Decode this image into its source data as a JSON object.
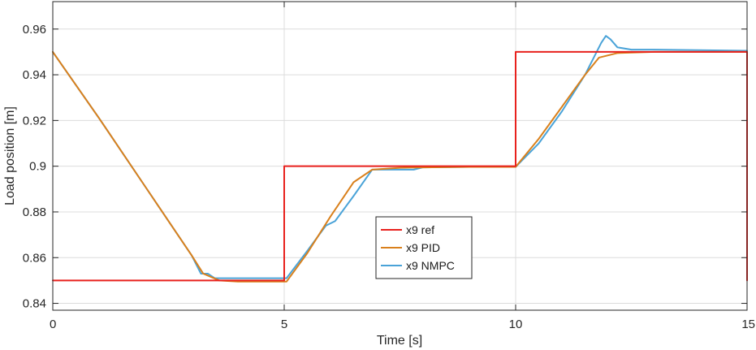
{
  "chart_data": {
    "type": "line",
    "title": "",
    "xlabel": "Time [s]",
    "ylabel": "Load position [m]",
    "xlim": [
      0,
      15
    ],
    "ylim": [
      0.837,
      0.972
    ],
    "xticks": [
      0,
      5,
      10,
      15
    ],
    "xtick_labels": [
      "0",
      "5",
      "10",
      "15"
    ],
    "yticks": [
      0.84,
      0.86,
      0.88,
      0.9,
      0.92,
      0.94,
      0.96
    ],
    "ytick_labels": [
      "0.84",
      "0.86",
      "0.88",
      "0.9",
      "0.92",
      "0.94",
      "0.96"
    ],
    "grid": true,
    "legend_position": "center",
    "series": [
      {
        "name": "x9 ref",
        "color": "#e8211d",
        "x": [
          0,
          5,
          5,
          10,
          10,
          15,
          15
        ],
        "y": [
          0.85,
          0.85,
          0.9,
          0.9,
          0.95,
          0.95,
          0.85
        ]
      },
      {
        "name": "x9 PID",
        "color": "#d9801c",
        "x": [
          0,
          1,
          2,
          3,
          3.25,
          3.6,
          4.0,
          5.0,
          5.05,
          5.5,
          6.0,
          6.5,
          6.9,
          7.5,
          8.0,
          9.0,
          10.0,
          10.5,
          11.0,
          11.5,
          11.8,
          12.2,
          13.0,
          15.0
        ],
        "y": [
          0.95,
          0.921,
          0.891,
          0.861,
          0.853,
          0.85,
          0.8495,
          0.8495,
          0.8495,
          0.862,
          0.878,
          0.893,
          0.8985,
          0.8993,
          0.8995,
          0.8997,
          0.8997,
          0.912,
          0.926,
          0.94,
          0.9475,
          0.9495,
          0.95,
          0.95
        ]
      },
      {
        "name": "x9 NMPC",
        "color": "#4aa3d8",
        "x": [
          0,
          1,
          2,
          3,
          3.2,
          3.35,
          3.5,
          4.0,
          4.5,
          5.0,
          5.05,
          5.5,
          5.9,
          6.1,
          6.5,
          6.9,
          7.5,
          7.8,
          8.0,
          9.0,
          10.0,
          10.5,
          11.0,
          11.5,
          11.85,
          11.95,
          12.05,
          12.2,
          12.5,
          13.0,
          15.0
        ],
        "y": [
          0.95,
          0.921,
          0.891,
          0.861,
          0.853,
          0.853,
          0.851,
          0.851,
          0.851,
          0.851,
          0.851,
          0.863,
          0.874,
          0.876,
          0.887,
          0.8985,
          0.8985,
          0.8985,
          0.8995,
          0.8997,
          0.8997,
          0.91,
          0.924,
          0.94,
          0.954,
          0.957,
          0.9555,
          0.952,
          0.951,
          0.951,
          0.9505
        ]
      }
    ]
  }
}
